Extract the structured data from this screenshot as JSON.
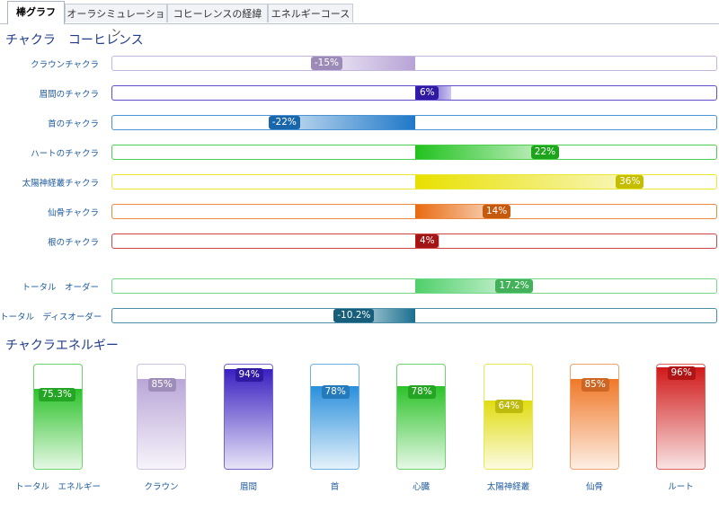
{
  "tabs": [
    {
      "label": "棒グラフ",
      "active": true
    },
    {
      "label": "オーラシミュレーション",
      "active": false
    },
    {
      "label": "コヒーレンスの経緯",
      "active": false
    },
    {
      "label": "エネルギーコース",
      "active": false
    }
  ],
  "coherence": {
    "title": "チャクラ　コーヒレンス",
    "rows": [
      {
        "label": "クラウンチャクラ",
        "value": -15,
        "display": "-15%",
        "color": "#b7a3d6"
      },
      {
        "label": "眉間のチャクラ",
        "value": 6,
        "display": "6%",
        "color": "#3a1fc0"
      },
      {
        "label": "首のチャクラ",
        "value": -22,
        "display": "-22%",
        "color": "#1e78c8"
      },
      {
        "label": "ハートのチャクラ",
        "value": 22,
        "display": "22%",
        "color": "#21c21f"
      },
      {
        "label": "太陽神経叢チャクラ",
        "value": 36,
        "display": "36%",
        "color": "#e8e000"
      },
      {
        "label": "仙骨チャクラ",
        "value": 14,
        "display": "14%",
        "color": "#e86a10"
      },
      {
        "label": "根のチャクラ",
        "value": 4,
        "display": "4%",
        "color": "#c01818"
      },
      {
        "label": "トータル　オーダー",
        "value": 17.2,
        "display": "17.2%",
        "color": "#4fd06a"
      },
      {
        "label": "トータル　ディスオーダー",
        "value": -10.2,
        "display": "-10.2%",
        "color": "#1a6f8f"
      }
    ]
  },
  "energy": {
    "title": "チャクラエネルギー",
    "columns": [
      {
        "label": "トータル　エネルギー",
        "value": 75.3,
        "display": "75.3%",
        "color": "#2cc22a"
      },
      {
        "label": "クラウン",
        "value": 85,
        "display": "85%",
        "color": "#b9a6d8"
      },
      {
        "label": "眉間",
        "value": 94,
        "display": "94%",
        "color": "#3a1fc0"
      },
      {
        "label": "首",
        "value": 78,
        "display": "78%",
        "color": "#2a8fdc"
      },
      {
        "label": "心臓",
        "value": 78,
        "display": "78%",
        "color": "#2cc22a"
      },
      {
        "label": "太陽神経叢",
        "value": 64,
        "display": "64%",
        "color": "#e0dc10"
      },
      {
        "label": "仙骨",
        "value": 85,
        "display": "85%",
        "color": "#f07828"
      },
      {
        "label": "ルート",
        "value": 96,
        "display": "96%",
        "color": "#d01818"
      }
    ]
  }
}
